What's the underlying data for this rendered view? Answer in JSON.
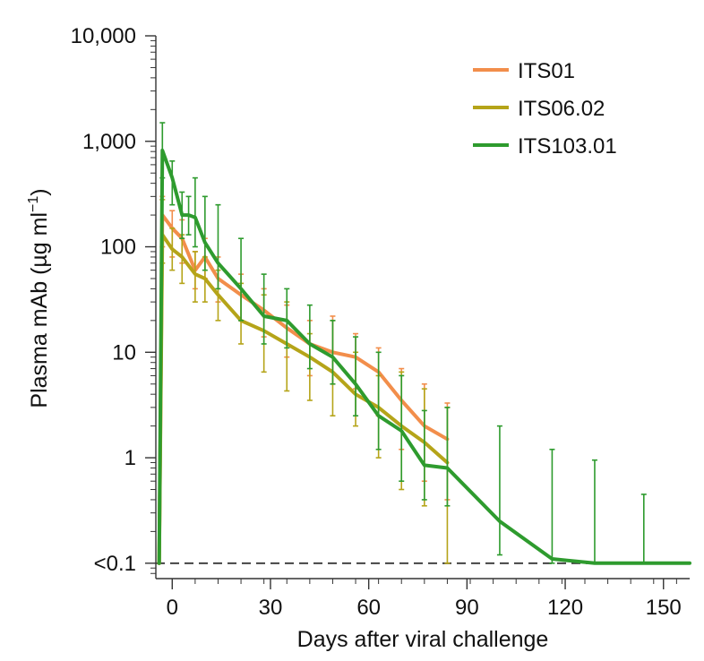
{
  "chart_data": {
    "type": "line",
    "title": "",
    "xlabel": "Days after viral challenge",
    "ylabel_main": "Plasma mAb (µg ml",
    "ylabel_sup": "−1",
    "ylabel_close": ")",
    "x_scale": "linear",
    "y_scale": "log",
    "xlim": [
      -5,
      158
    ],
    "ylim": [
      0.0715,
      10000
    ],
    "x_ticks": [
      0,
      30,
      60,
      90,
      120,
      150
    ],
    "x_tick_labels": [
      "0",
      "30",
      "60",
      "90",
      "120",
      "150"
    ],
    "y_ticks": [
      0.1,
      1,
      10,
      100,
      1000,
      10000
    ],
    "y_tick_labels": [
      "<0.1",
      "1",
      "10",
      "100",
      "1,000",
      "10,000"
    ],
    "threshold": {
      "value": 0.1,
      "style": "dashed",
      "color": "#444444"
    },
    "grid": false,
    "legend_position": "top-right",
    "series": [
      {
        "name": "ITS01",
        "color": "#F28E4B",
        "x": [
          -4,
          -3,
          0,
          3,
          7,
          10,
          14,
          21,
          28,
          35,
          42,
          49,
          56,
          63,
          70,
          77,
          84
        ],
        "y": [
          0.1,
          200,
          150,
          120,
          60,
          80,
          50,
          35,
          25,
          17,
          12,
          10,
          9,
          6.5,
          3.5,
          2,
          1.5
        ],
        "err_low": [
          0.1,
          100,
          80,
          70,
          40,
          50,
          30,
          20,
          14,
          9,
          6,
          5,
          4.5,
          2.5,
          1.2,
          0.6,
          0.4
        ],
        "err_high": [
          0.1,
          300,
          220,
          180,
          90,
          120,
          80,
          55,
          40,
          28,
          20,
          22,
          15,
          11,
          7,
          5,
          3.3
        ]
      },
      {
        "name": "ITS06.02",
        "color": "#B5A419",
        "x": [
          -4,
          -3,
          0,
          3,
          7,
          10,
          14,
          21,
          28,
          35,
          42,
          49,
          56,
          63,
          70,
          77,
          84
        ],
        "y": [
          0.1,
          130,
          95,
          80,
          55,
          50,
          35,
          20,
          16,
          12,
          9,
          6.5,
          4,
          3,
          2,
          1.4,
          0.9
        ],
        "err_low": [
          0.1,
          70,
          60,
          45,
          30,
          30,
          20,
          12,
          6.5,
          4.3,
          3.5,
          2.5,
          2,
          1,
          0.5,
          0.35,
          0.1
        ],
        "err_high": [
          0.1,
          280,
          150,
          130,
          90,
          80,
          60,
          45,
          35,
          30,
          15,
          20,
          10,
          6,
          6.5,
          4.5,
          3
        ]
      },
      {
        "name": "ITS103.01",
        "color": "#2E9B2E",
        "x": [
          -4,
          -3,
          0,
          3,
          5,
          7,
          10,
          14,
          21,
          28,
          35,
          42,
          49,
          56,
          63,
          70,
          77,
          84,
          100,
          116,
          129,
          144,
          158
        ],
        "y": [
          0.1,
          820,
          450,
          200,
          200,
          190,
          110,
          70,
          40,
          22,
          20,
          12,
          9,
          5,
          2.5,
          1.8,
          0.85,
          0.8,
          0.25,
          0.11,
          0.1,
          0.1,
          0.1
        ],
        "err_low": [
          0.1,
          450,
          250,
          120,
          130,
          100,
          60,
          40,
          20,
          12,
          11,
          7,
          5,
          2.5,
          1.2,
          0.6,
          0.4,
          0.35,
          0.12,
          0.1,
          0.1,
          0.1,
          0.1
        ],
        "err_high": [
          0.1,
          1500,
          650,
          330,
          300,
          450,
          300,
          250,
          120,
          55,
          40,
          28,
          20,
          14,
          10,
          6,
          2.8,
          3,
          2,
          1.2,
          0.95,
          0.45,
          0.1
        ]
      }
    ]
  }
}
